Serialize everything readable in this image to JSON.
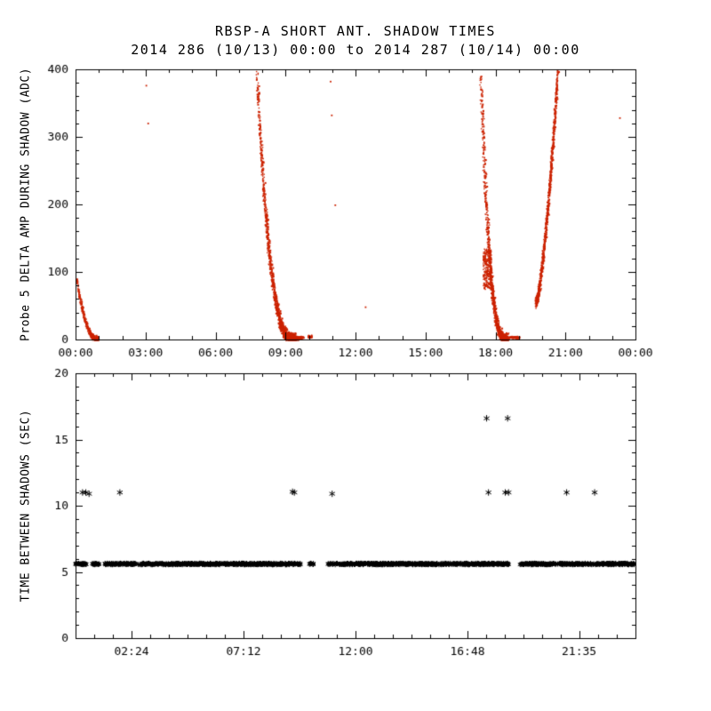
{
  "figure": {
    "background": "#ffffff",
    "title": "RBSP-A SHORT ANT. SHADOW TIMES",
    "subtitle": "2014 286 (10/13) 00:00 to 2014 287 (10/14) 00:00"
  },
  "chart_data": [
    {
      "type": "scatter",
      "panel": "top",
      "title": "RBSP-A SHORT ANT. SHADOW TIMES",
      "subtitle": "2014 286 (10/13) 00:00 to 2014 287 (10/14) 00:00",
      "xlabel": "",
      "ylabel": "Probe 5 DELTA AMP DURING SHADOW (ADC)",
      "xlim": [
        0,
        24
      ],
      "ylim": [
        0,
        400
      ],
      "xticks": [
        0,
        3,
        6,
        9,
        12,
        15,
        18,
        21,
        24
      ],
      "xtick_labels": [
        "00:00",
        "03:00",
        "06:00",
        "09:00",
        "12:00",
        "15:00",
        "18:00",
        "21:00",
        "00:00"
      ],
      "x_minor_per_major": 3,
      "yticks": [
        0,
        100,
        200,
        300,
        400
      ],
      "y_minor_per_major": 5,
      "grid": false,
      "marker": "dot",
      "marker_color": "#cc2200",
      "series": [
        {
          "name": "shadow-decay-00h",
          "shape": "decay",
          "t_start": 0.0,
          "t_end": 0.95,
          "v_start": 95,
          "v_end": 0,
          "power": 2.2,
          "n": 350,
          "t_jitter": 0.05,
          "v_jitter": 7
        },
        {
          "name": "shadow-decay-08h",
          "shape": "decay",
          "t_start": 7.75,
          "t_end": 9.45,
          "v_start": 400,
          "v_end": 0,
          "power": 3.0,
          "n": 1500,
          "t_jitter": 0.09,
          "v_jitter": 13
        },
        {
          "name": "zero-tail-09h",
          "shape": "flat",
          "t_start": 9.3,
          "t_end": 9.75,
          "v": 3,
          "n": 260,
          "t_jitter": 0,
          "v_jitter": 3
        },
        {
          "name": "zero-tail-10h",
          "shape": "flat",
          "t_start": 9.95,
          "t_end": 10.12,
          "v": 4,
          "n": 60,
          "t_jitter": 0,
          "v_jitter": 4
        },
        {
          "name": "shadow-decay-17h",
          "shape": "decay",
          "t_start": 17.35,
          "t_end": 18.5,
          "v_start": 400,
          "v_end": 0,
          "power": 3.0,
          "n": 1200,
          "t_jitter": 0.09,
          "v_jitter": 13
        },
        {
          "name": "knot-17h",
          "shape": "blob",
          "t_start": 17.45,
          "t_end": 17.8,
          "v_min": 75,
          "v_max": 135,
          "n": 260
        },
        {
          "name": "zero-tail-18h",
          "shape": "flat",
          "t_start": 18.3,
          "t_end": 19.0,
          "v": 3,
          "n": 220,
          "t_jitter": 0,
          "v_jitter": 3
        },
        {
          "name": "shadow-rise-20h",
          "shape": "rise",
          "t_start": 19.7,
          "t_end": 20.65,
          "v_start": 55,
          "v_end": 400,
          "power": 1.5,
          "n": 900,
          "t_jitter": 0.06,
          "v_jitter": 12
        }
      ],
      "points": [
        [
          3.0,
          377
        ],
        [
          3.08,
          321
        ],
        [
          10.9,
          383
        ],
        [
          10.95,
          333
        ],
        [
          11.1,
          200
        ],
        [
          12.4,
          49
        ],
        [
          23.3,
          329
        ]
      ]
    },
    {
      "type": "scatter",
      "panel": "bottom",
      "xlabel": "",
      "ylabel": "TIME BETWEEN SHADOWS (SEC)",
      "xlim": [
        0,
        24
      ],
      "ylim": [
        0,
        20
      ],
      "xticks": [
        2.4,
        7.2,
        12.0,
        16.8,
        21.583
      ],
      "xtick_labels": [
        "02:24",
        "07:12",
        "12:00",
        "16:48",
        "21:35"
      ],
      "x_minor_per_major": 6,
      "yticks": [
        0,
        5,
        10,
        15,
        20
      ],
      "y_minor_per_major": 5,
      "grid": false,
      "marker": "asterisk",
      "marker_color": "#000000",
      "band": {
        "value": 5.6,
        "jitter": 0.12,
        "density_per_hour": 60,
        "segments": [
          [
            0.0,
            0.46
          ],
          [
            0.69,
            1.03
          ],
          [
            1.26,
            9.71
          ],
          [
            10.02,
            10.21
          ],
          [
            10.82,
            18.59
          ],
          [
            19.05,
            24.0
          ]
        ]
      },
      "outliers": [
        [
          0.3,
          11.0
        ],
        [
          0.44,
          11.0
        ],
        [
          0.58,
          10.9
        ],
        [
          1.9,
          11.0
        ],
        [
          9.3,
          11.05
        ],
        [
          9.38,
          11.0
        ],
        [
          11.0,
          10.9
        ],
        [
          17.7,
          11.0
        ],
        [
          18.42,
          11.0
        ],
        [
          18.56,
          11.0
        ],
        [
          21.05,
          11.0
        ],
        [
          22.25,
          11.0
        ],
        [
          17.62,
          16.6
        ],
        [
          18.52,
          16.6
        ]
      ]
    }
  ]
}
